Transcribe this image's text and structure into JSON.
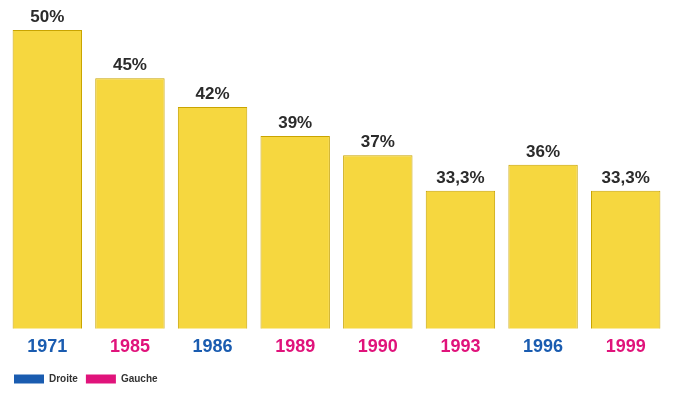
{
  "chart_data": {
    "type": "bar",
    "categories": [
      "1971",
      "1985",
      "1986",
      "1989",
      "1990",
      "1993",
      "1996",
      "1999"
    ],
    "series": [
      {
        "name": "Droite",
        "color": "#1a5cb0",
        "values": [
          50,
          null,
          42,
          null,
          null,
          null,
          36,
          null
        ],
        "value_labels": [
          "50%",
          null,
          "42%",
          null,
          null,
          null,
          "36%",
          null
        ]
      },
      {
        "name": "Gauche",
        "color": "#e0137b",
        "values": [
          null,
          45,
          null,
          39,
          37,
          33.3,
          null,
          33.3
        ],
        "value_labels": [
          null,
          "45%",
          null,
          "39%",
          "37%",
          "33,3%",
          null,
          "33,3%"
        ]
      }
    ],
    "stacked": true,
    "ylim": [
      19,
      50
    ],
    "grid": false,
    "data_labels": true,
    "tick_labels": "x",
    "legend": "bottom-left"
  }
}
